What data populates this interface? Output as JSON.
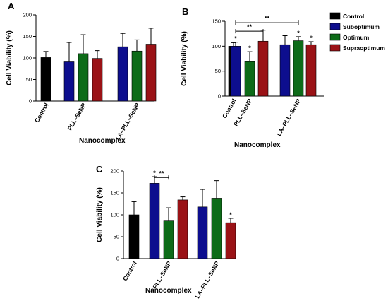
{
  "legend": {
    "placement": "right of panel B",
    "items": [
      {
        "name": "Control",
        "color": "#000000"
      },
      {
        "name": "Suboptimum",
        "color": "#0d0e8e"
      },
      {
        "name": "Optimum",
        "color": "#0d6b18"
      },
      {
        "name": "Supraoptimum",
        "color": "#9a1216"
      }
    ]
  },
  "chart_data": [
    {
      "type": "bar",
      "panel": "A",
      "title": "",
      "ylabel": "Cell Viability (%)",
      "xlabel": "Nanocomplex",
      "ylim": [
        0,
        200
      ],
      "yticks": [
        0,
        50,
        100,
        150,
        200
      ],
      "categories": [
        "Control",
        "PLL–SeNP",
        "LA–PLL–SeNP"
      ],
      "bars": [
        {
          "group": 0,
          "level": "Control",
          "value": 101,
          "error": 14,
          "star": ""
        },
        {
          "group": 1,
          "level": "Suboptimum",
          "value": 91,
          "error": 45,
          "star": ""
        },
        {
          "group": 1,
          "level": "Optimum",
          "value": 110,
          "error": 44,
          "star": ""
        },
        {
          "group": 1,
          "level": "Supraoptimum",
          "value": 99,
          "error": 18,
          "star": ""
        },
        {
          "group": 2,
          "level": "Suboptimum",
          "value": 126,
          "error": 31,
          "star": ""
        },
        {
          "group": 2,
          "level": "Optimum",
          "value": 116,
          "error": 26,
          "star": ""
        },
        {
          "group": 2,
          "level": "Supraoptimum",
          "value": 132,
          "error": 37,
          "star": ""
        }
      ],
      "brackets": []
    },
    {
      "type": "bar",
      "panel": "B",
      "title": "",
      "ylabel": "Cell Viability (%)",
      "xlabel": "Nanocomplex",
      "ylim": [
        0,
        150
      ],
      "yticks": [
        0,
        50,
        100,
        150
      ],
      "categories": [
        "Control",
        "PLL–SeNP",
        "LA–PLL–SeNP"
      ],
      "bars": [
        {
          "group": 0,
          "level": "Control",
          "value": 100,
          "error": 7,
          "star": ""
        },
        {
          "group": 1,
          "level": "Suboptimum",
          "value": 100,
          "error": 8,
          "star": "*"
        },
        {
          "group": 1,
          "level": "Optimum",
          "value": 69,
          "error": 20,
          "star": "*"
        },
        {
          "group": 1,
          "level": "Supraoptimum",
          "value": 110,
          "error": 22,
          "star": ""
        },
        {
          "group": 2,
          "level": "Suboptimum",
          "value": 103,
          "error": 18,
          "star": ""
        },
        {
          "group": 2,
          "level": "Optimum",
          "value": 111,
          "error": 8,
          "star": "*"
        },
        {
          "group": 2,
          "level": "Supraoptimum",
          "value": 103,
          "error": 6,
          "star": "*"
        }
      ],
      "brackets": [
        {
          "from_bar": 1,
          "to_bar": 3,
          "y": 130,
          "label": "**"
        },
        {
          "from_bar": 1,
          "to_bar": 5,
          "y": 147,
          "label": "**"
        }
      ]
    },
    {
      "type": "bar",
      "panel": "C",
      "title": "",
      "ylabel": "Cell Viability (%)",
      "xlabel": "Nanocomplex",
      "ylim": [
        0,
        200
      ],
      "yticks": [
        0,
        50,
        100,
        150,
        200
      ],
      "categories": [
        "Control",
        "PLL–SeNP",
        "LA–PLL–SeNP"
      ],
      "bars": [
        {
          "group": 0,
          "level": "Control",
          "value": 100,
          "error": 30,
          "star": ""
        },
        {
          "group": 1,
          "level": "Suboptimum",
          "value": 172,
          "error": 15,
          "star": "*"
        },
        {
          "group": 1,
          "level": "Optimum",
          "value": 86,
          "error": 30,
          "star": ""
        },
        {
          "group": 1,
          "level": "Supraoptimum",
          "value": 134,
          "error": 7,
          "star": ""
        },
        {
          "group": 2,
          "level": "Suboptimum",
          "value": 118,
          "error": 40,
          "star": ""
        },
        {
          "group": 2,
          "level": "Optimum",
          "value": 138,
          "error": 40,
          "star": ""
        },
        {
          "group": 2,
          "level": "Supraoptimum",
          "value": 82,
          "error": 10,
          "star": "*"
        }
      ],
      "brackets": [
        {
          "from_bar": 1,
          "to_bar": 2,
          "y": 185,
          "label": "**"
        }
      ]
    }
  ]
}
